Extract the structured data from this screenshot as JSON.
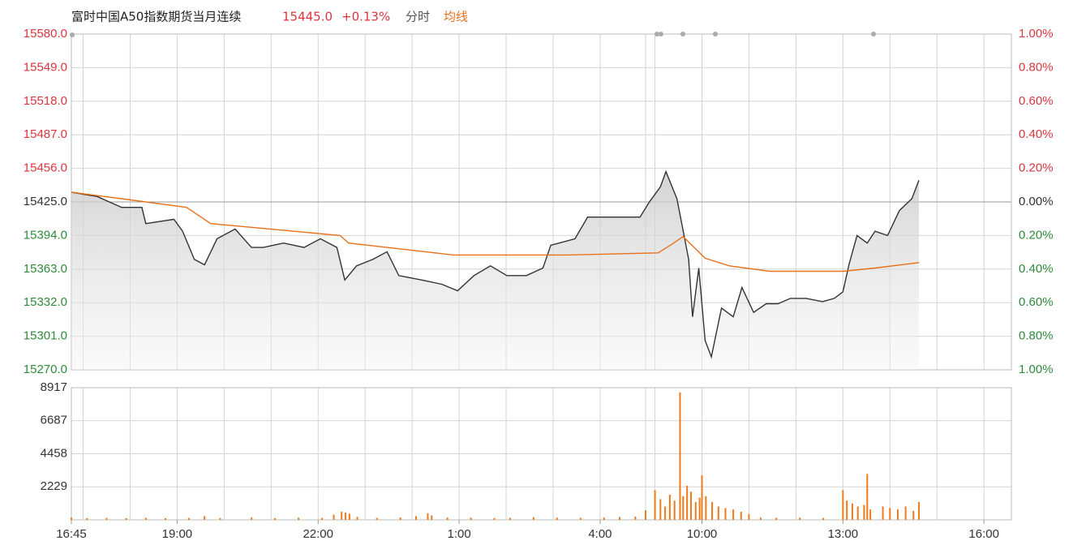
{
  "header": {
    "title": "富时中国A50指数期货当月连续",
    "last": "15445.0",
    "change": "+0.13%",
    "mode": "分时"
  },
  "chart_data": [
    {
      "type": "line",
      "xlim": [
        0,
        1200
      ],
      "xgrid": [
        15,
        75,
        135,
        195,
        255,
        315,
        375,
        435,
        495,
        555,
        615,
        675,
        733,
        745,
        805,
        865,
        925,
        985,
        1045,
        1105,
        1165
      ],
      "ylim": [
        15270,
        15580
      ],
      "yticks": [
        {
          "value": 15270,
          "label": "15270.0"
        },
        {
          "value": 15301,
          "label": "15301.0"
        },
        {
          "value": 15332,
          "label": "15332.0"
        },
        {
          "value": 15363,
          "label": "15363.0"
        },
        {
          "value": 15394,
          "label": "15394.0"
        },
        {
          "value": 15425,
          "label": "15425.0"
        },
        {
          "value": 15456,
          "label": "15456.0"
        },
        {
          "value": 15487,
          "label": "15487.0"
        },
        {
          "value": 15518,
          "label": "15518.0"
        },
        {
          "value": 15549,
          "label": "15549.0"
        },
        {
          "value": 15580,
          "label": "15580.0"
        }
      ],
      "y2lim": [
        -1,
        1
      ],
      "y2ticks": [
        {
          "value": -1,
          "label": "1.00%"
        },
        {
          "value": -0.8,
          "label": "0.80%"
        },
        {
          "value": -0.6,
          "label": "0.60%"
        },
        {
          "value": -0.4,
          "label": "0.40%"
        },
        {
          "value": -0.2,
          "label": "0.20%"
        },
        {
          "value": 0,
          "label": "0.00%"
        },
        {
          "value": 0.2,
          "label": "0.20%"
        },
        {
          "value": 0.4,
          "label": "0.40%"
        },
        {
          "value": 0.6,
          "label": "0.60%"
        },
        {
          "value": 0.8,
          "label": "0.80%"
        },
        {
          "value": 1,
          "label": "1.00%"
        }
      ],
      "up_color": "#d9363e",
      "down_color": "#2e8b3a",
      "flat_color": "#333333",
      "grid": true,
      "series": [
        {
          "color": "#333333",
          "area": true,
          "x": [
            0,
            33,
            64,
            90,
            95,
            131,
            142,
            157,
            170,
            186,
            209,
            230,
            245,
            271,
            297,
            318,
            339,
            349,
            364,
            385,
            403,
            418,
            447,
            473,
            493,
            514,
            535,
            556,
            581,
            602,
            612,
            643,
            659,
            695,
            726,
            737,
            752,
            759,
            773,
            780,
            788,
            793,
            801,
            809,
            817,
            830,
            845,
            856,
            871,
            887,
            902,
            918,
            938,
            959,
            974,
            985,
            993,
            1003,
            1016,
            1026,
            1042,
            1057,
            1073,
            1082
          ],
          "values": [
            15434,
            15430,
            15420,
            15420,
            15405,
            15409,
            15398,
            15372,
            15367,
            15391,
            15400,
            15383,
            15383,
            15387,
            15383,
            15391,
            15383,
            15353,
            15366,
            15372,
            15379,
            15357,
            15353,
            15349,
            15343,
            15357,
            15366,
            15357,
            15357,
            15364,
            15385,
            15391,
            15411,
            15411,
            15411,
            15424,
            15439,
            15453,
            15428,
            15402,
            15372,
            15319,
            15364,
            15297,
            15282,
            15327,
            15319,
            15346,
            15323,
            15331,
            15331,
            15336,
            15336,
            15333,
            15336,
            15342,
            15368,
            15394,
            15387,
            15398,
            15394,
            15417,
            15428,
            15445
          ]
        },
        {
          "name": "均线",
          "color": "#e8701a",
          "area": false,
          "x": [
            0,
            64,
            147,
            178,
            343,
            354,
            488,
            633,
            749,
            769,
            781,
            809,
            840,
            892,
            985,
            1026,
            1082
          ],
          "values": [
            15434,
            15428,
            15420,
            15405,
            15394,
            15387,
            15376,
            15376,
            15378,
            15387,
            15393,
            15373,
            15366,
            15361,
            15361,
            15364,
            15369
          ]
        }
      ]
    },
    {
      "type": "bar",
      "xlim": [
        0,
        1200
      ],
      "xticks": [
        {
          "value": 0,
          "label": "16:45"
        },
        {
          "value": 135,
          "label": "19:00"
        },
        {
          "value": 315,
          "label": "22:00"
        },
        {
          "value": 495,
          "label": "1:00"
        },
        {
          "value": 675,
          "label": "4:00"
        },
        {
          "value": 805,
          "label": "10:00"
        },
        {
          "value": 985,
          "label": "13:00"
        },
        {
          "value": 1165,
          "label": "16:00"
        }
      ],
      "ylim": [
        0,
        8917
      ],
      "yticks": [
        2229,
        4458,
        6687,
        8917
      ],
      "color": "#f07a1a",
      "grid": true,
      "x": [
        0,
        20,
        45,
        70,
        95,
        120,
        150,
        170,
        190,
        230,
        260,
        290,
        320,
        335,
        345,
        350,
        355,
        365,
        390,
        420,
        440,
        455,
        460,
        480,
        510,
        540,
        560,
        590,
        620,
        650,
        680,
        700,
        720,
        733,
        745,
        752,
        758,
        764,
        770,
        777,
        781,
        786,
        791,
        797,
        802,
        805,
        810,
        818,
        826,
        835,
        845,
        855,
        865,
        880,
        900,
        930,
        960,
        985,
        990,
        997,
        1004,
        1012,
        1016,
        1020,
        1036,
        1045,
        1055,
        1065,
        1075,
        1082
      ],
      "values": [
        150,
        120,
        130,
        110,
        140,
        110,
        130,
        250,
        120,
        160,
        120,
        140,
        130,
        350,
        550,
        500,
        420,
        200,
        130,
        160,
        250,
        450,
        300,
        150,
        150,
        120,
        140,
        180,
        150,
        140,
        160,
        190,
        220,
        650,
        2000,
        1400,
        900,
        1700,
        1300,
        8600,
        1600,
        2300,
        1900,
        1200,
        1500,
        3000,
        1600,
        1200,
        900,
        800,
        700,
        550,
        400,
        150,
        140,
        150,
        130,
        2000,
        1300,
        1100,
        900,
        1000,
        3100,
        700,
        900,
        800,
        700,
        900,
        600,
        1200
      ]
    }
  ]
}
